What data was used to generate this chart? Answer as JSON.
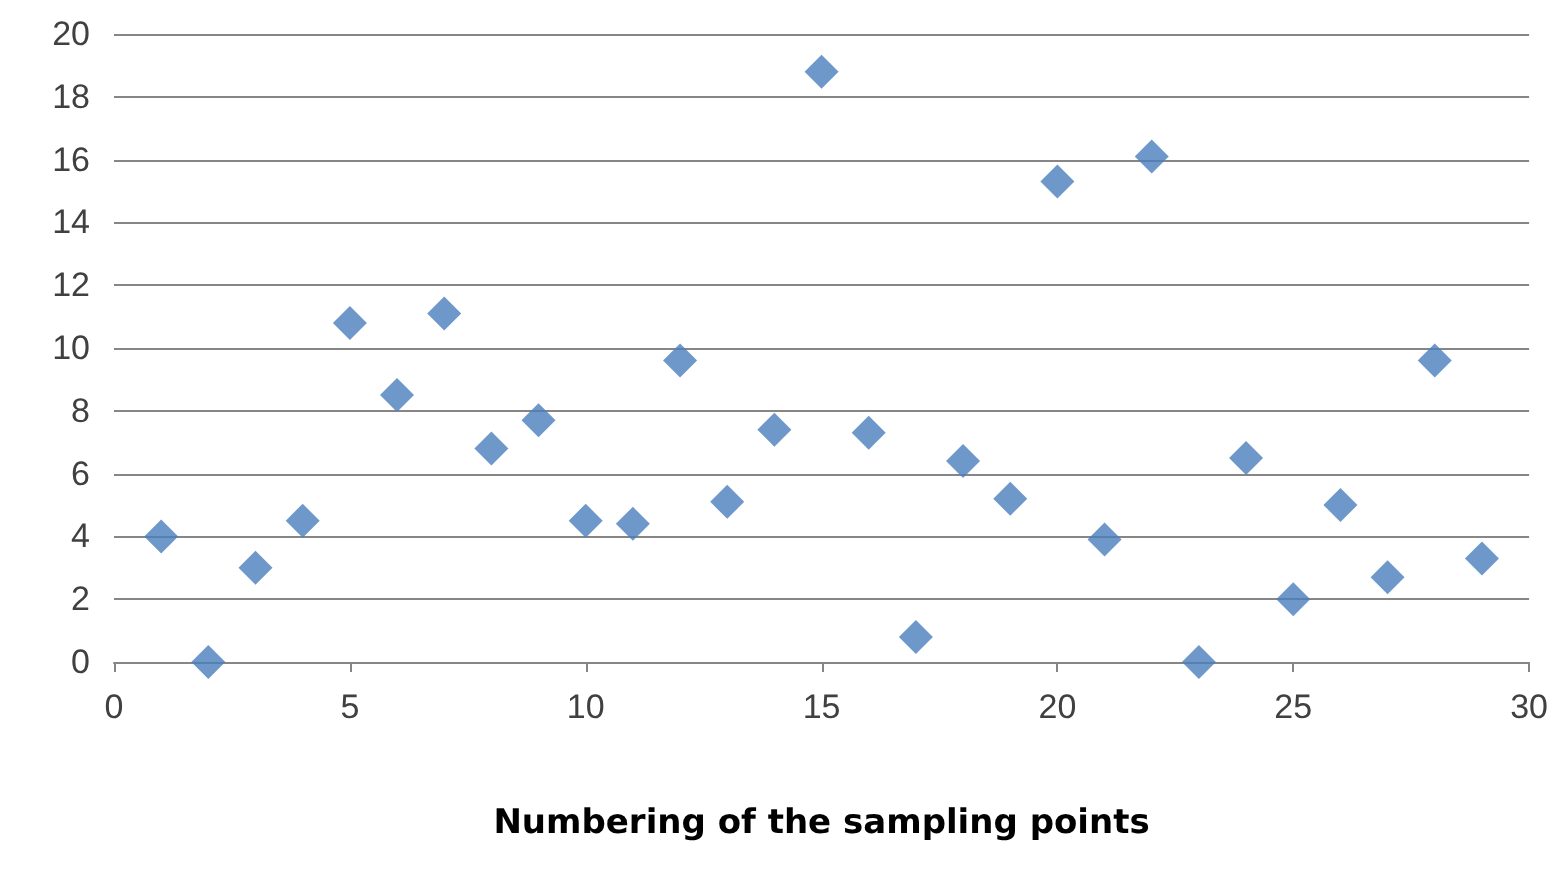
{
  "chart_data": {
    "type": "scatter",
    "xlabel": "Numbering of the sampling points",
    "x": [
      1,
      2,
      3,
      4,
      5,
      6,
      7,
      8,
      9,
      10,
      11,
      12,
      13,
      14,
      15,
      16,
      17,
      18,
      19,
      20,
      21,
      22,
      23,
      24,
      25,
      26,
      27,
      28,
      29
    ],
    "series": [
      {
        "color": "#4a7ebb",
        "values": [
          4.0,
          0,
          3.0,
          4.5,
          10.8,
          8.5,
          11.1,
          6.8,
          7.7,
          4.5,
          4.4,
          9.6,
          5.1,
          7.4,
          18.8,
          7.3,
          0.8,
          6.4,
          5.2,
          15.3,
          3.9,
          16.1,
          0,
          6.5,
          2.0,
          5.0,
          2.7,
          9.6,
          3.3
        ]
      }
    ],
    "xlim": [
      0,
      30
    ],
    "xticks": [
      0,
      5,
      10,
      15,
      20,
      25,
      30
    ],
    "ylim": [
      0,
      20
    ],
    "yticks": [
      0,
      2,
      4,
      6,
      8,
      10,
      12,
      14,
      16,
      18,
      20
    ],
    "grid": "y",
    "marker": "diamond"
  }
}
